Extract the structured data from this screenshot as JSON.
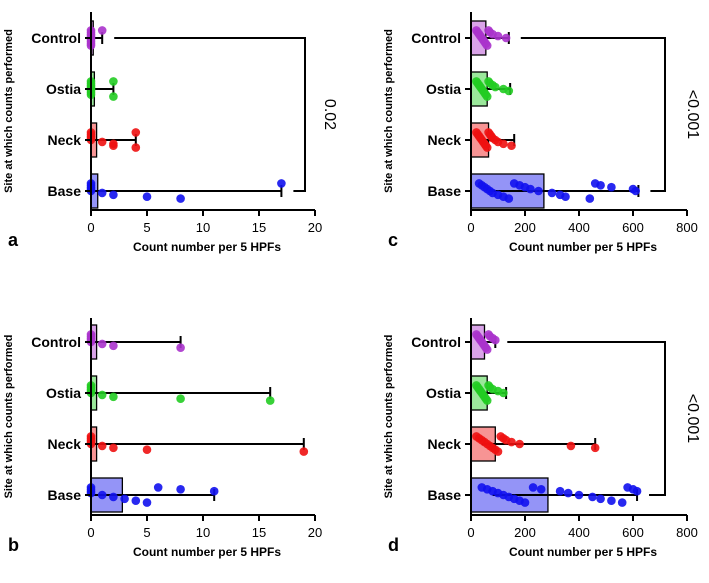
{
  "figure": {
    "y_label": "Site at which counts performed",
    "x_label": "Count number per 5 HPFs"
  },
  "chart_data": [
    {
      "panel": "a",
      "type": "bar",
      "orientation": "horizontal",
      "categories": [
        "Control",
        "Ostia",
        "Neck",
        "Base"
      ],
      "xlim": [
        0,
        20
      ],
      "xticks": [
        "0",
        "5",
        "10",
        "15",
        "20"
      ],
      "xlabel": "Count number per 5 HPFs",
      "ylabel": "Site at which counts performed",
      "series": [
        {
          "name": "Control",
          "color": "#aa33cc",
          "bar": 0.2,
          "err_low": 0,
          "err_high": 1,
          "points": [
            0,
            0,
            0,
            0,
            0,
            0,
            0,
            0,
            0,
            1
          ]
        },
        {
          "name": "Ostia",
          "color": "#22cc22",
          "bar": 0.3,
          "err_low": 0,
          "err_high": 2,
          "points": [
            0,
            0,
            0,
            0,
            0,
            0,
            0,
            0,
            2,
            2
          ]
        },
        {
          "name": "Neck",
          "color": "#ee1111",
          "bar": 0.5,
          "err_low": 0,
          "err_high": 4,
          "points": [
            0,
            0,
            0,
            0,
            0,
            1,
            2,
            2,
            4,
            4
          ]
        },
        {
          "name": "Base",
          "color": "#1111ee",
          "bar": 0.6,
          "err_low": 0,
          "err_high": 17,
          "points": [
            0,
            0,
            0,
            0,
            0,
            1,
            2,
            5,
            8,
            17
          ]
        }
      ],
      "significance": {
        "from": "Control",
        "to": "Base",
        "p": "0.02"
      }
    },
    {
      "panel": "b",
      "type": "bar",
      "orientation": "horizontal",
      "categories": [
        "Control",
        "Ostia",
        "Neck",
        "Base"
      ],
      "xlim": [
        0,
        20
      ],
      "xticks": [
        "0",
        "5",
        "10",
        "15",
        "20"
      ],
      "xlabel": "Count number per 5 HPFs",
      "ylabel": "Site at which counts performed",
      "series": [
        {
          "name": "Control",
          "color": "#aa33cc",
          "bar": 0.5,
          "err_low": 0,
          "err_high": 8,
          "points": [
            0,
            0,
            0,
            0,
            0,
            1,
            2,
            8
          ]
        },
        {
          "name": "Ostia",
          "color": "#22cc22",
          "bar": 0.5,
          "err_low": 0,
          "err_high": 16,
          "points": [
            0,
            0,
            0,
            0,
            0,
            1,
            2,
            8,
            16
          ]
        },
        {
          "name": "Neck",
          "color": "#ee1111",
          "bar": 0.5,
          "err_low": 0,
          "err_high": 19,
          "points": [
            0,
            0,
            0,
            0,
            0,
            1,
            2,
            5,
            19
          ]
        },
        {
          "name": "Base",
          "color": "#1111ee",
          "bar": 2.8,
          "err_low": 0,
          "err_high": 11,
          "points": [
            0,
            0,
            0,
            0,
            1,
            2,
            3,
            4,
            5,
            6,
            8,
            11
          ]
        }
      ]
    },
    {
      "panel": "c",
      "type": "bar",
      "orientation": "horizontal",
      "categories": [
        "Control",
        "Ostia",
        "Neck",
        "Base"
      ],
      "xlim": [
        0,
        800
      ],
      "xticks": [
        "0",
        "200",
        "400",
        "600",
        "800"
      ],
      "xlabel": "Count number per 5 HPFs",
      "ylabel": "Site at which counts performed",
      "series": [
        {
          "name": "Control",
          "color": "#aa33cc",
          "bar": 55,
          "err_low": 30,
          "err_high": 140,
          "points": [
            20,
            25,
            30,
            35,
            40,
            45,
            50,
            55,
            60,
            65,
            70,
            80,
            100,
            130
          ]
        },
        {
          "name": "Ostia",
          "color": "#22cc22",
          "bar": 60,
          "err_low": 30,
          "err_high": 145,
          "points": [
            20,
            25,
            30,
            35,
            40,
            45,
            50,
            55,
            60,
            65,
            70,
            80,
            90,
            120,
            140
          ]
        },
        {
          "name": "Neck",
          "color": "#ee1111",
          "bar": 65,
          "err_low": 30,
          "err_high": 160,
          "points": [
            20,
            25,
            30,
            35,
            40,
            45,
            50,
            55,
            60,
            65,
            70,
            75,
            80,
            90,
            100,
            120,
            150
          ]
        },
        {
          "name": "Base",
          "color": "#1111ee",
          "bar": 270,
          "err_low": 75,
          "err_high": 620,
          "points": [
            30,
            40,
            50,
            60,
            70,
            80,
            100,
            120,
            140,
            160,
            180,
            200,
            220,
            250,
            300,
            330,
            350,
            440,
            460,
            480,
            520,
            600,
            610
          ]
        }
      ],
      "significance": {
        "from": "Control",
        "to": "Base",
        "p": "<0.001"
      }
    },
    {
      "panel": "d",
      "type": "bar",
      "orientation": "horizontal",
      "categories": [
        "Control",
        "Ostia",
        "Neck",
        "Base"
      ],
      "xlim": [
        0,
        800
      ],
      "xticks": [
        "0",
        "200",
        "400",
        "600",
        "800"
      ],
      "xlabel": "Count number per 5 HPFs",
      "ylabel": "Site at which counts performed",
      "series": [
        {
          "name": "Control",
          "color": "#aa33cc",
          "bar": 50,
          "err_low": 25,
          "err_high": 90,
          "points": [
            20,
            25,
            30,
            35,
            40,
            45,
            50,
            55,
            60,
            65,
            70,
            80,
            90
          ]
        },
        {
          "name": "Ostia",
          "color": "#22cc22",
          "bar": 60,
          "err_low": 25,
          "err_high": 130,
          "points": [
            20,
            25,
            30,
            35,
            40,
            45,
            50,
            55,
            60,
            65,
            70,
            80,
            100,
            120
          ]
        },
        {
          "name": "Neck",
          "color": "#ee1111",
          "bar": 90,
          "err_low": 40,
          "err_high": 460,
          "points": [
            20,
            30,
            40,
            50,
            60,
            70,
            80,
            90,
            100,
            110,
            120,
            130,
            150,
            180,
            370,
            460
          ]
        },
        {
          "name": "Base",
          "color": "#1111ee",
          "bar": 285,
          "err_low": 80,
          "err_high": 615,
          "points": [
            40,
            60,
            80,
            100,
            120,
            140,
            160,
            180,
            200,
            230,
            260,
            330,
            360,
            400,
            450,
            480,
            520,
            560,
            580,
            600,
            615
          ]
        }
      ],
      "significance": {
        "from": "Control",
        "to": "Base",
        "p": "<0.001"
      }
    }
  ]
}
